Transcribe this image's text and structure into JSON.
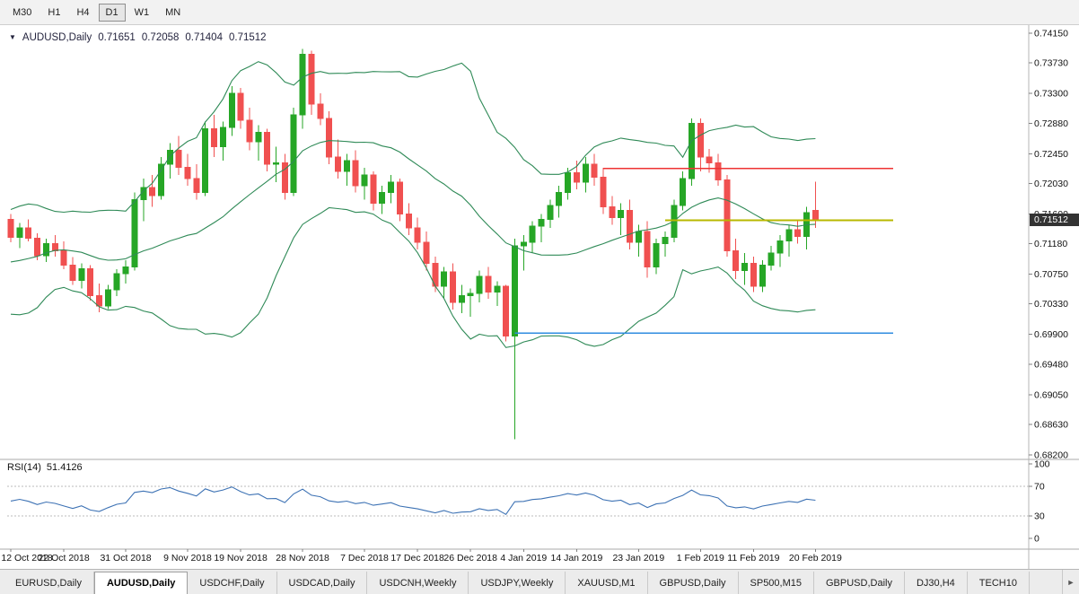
{
  "icons": {
    "chart_marker": "▼",
    "tab_scroll_right": "►"
  },
  "toolbar": {
    "timeframes": [
      {
        "label": "M30",
        "selected": false
      },
      {
        "label": "H1",
        "selected": false
      },
      {
        "label": "H4",
        "selected": false
      },
      {
        "label": "D1",
        "selected": true
      },
      {
        "label": "W1",
        "selected": false
      },
      {
        "label": "MN",
        "selected": false
      }
    ]
  },
  "chart": {
    "title_symbol": "AUDUSD,Daily",
    "ohlc": {
      "open": "0.71651",
      "high": "0.72058",
      "low": "0.71404",
      "close": "0.71512"
    },
    "current_price": "0.71512"
  },
  "rsi_label": {
    "name": "RSI(14)",
    "value": "51.4126"
  },
  "tabs": {
    "items": [
      {
        "label": "EURUSD,Daily",
        "selected": false
      },
      {
        "label": "AUDUSD,Daily",
        "selected": true
      },
      {
        "label": "USDCHF,Daily",
        "selected": false
      },
      {
        "label": "USDCAD,Daily",
        "selected": false
      },
      {
        "label": "USDCNH,Weekly",
        "selected": false
      },
      {
        "label": "USDJPY,Weekly",
        "selected": false
      },
      {
        "label": "XAUUSD,M1",
        "selected": false
      },
      {
        "label": "GBPUSD,Daily",
        "selected": false
      },
      {
        "label": "SP500,M15",
        "selected": false
      },
      {
        "label": "GBPUSD,Daily",
        "selected": false
      },
      {
        "label": "DJ30,H4",
        "selected": false
      },
      {
        "label": "TECH10",
        "selected": false
      }
    ]
  },
  "chart_data": {
    "type": "candlestick",
    "symbol": "AUDUSD",
    "timeframe": "Daily",
    "title": "AUDUSD,Daily",
    "current_price": 0.71512,
    "colors": {
      "up": "#26a626",
      "down": "#f05050"
    },
    "price_axis": {
      "ticks": [
        "0.74150",
        "0.73730",
        "0.73300",
        "0.72880",
        "0.72450",
        "0.72030",
        "0.71600",
        "0.71180",
        "0.70750",
        "0.70330",
        "0.69900",
        "0.69480",
        "0.69050",
        "0.68630",
        "0.68200"
      ]
    },
    "date_axis": [
      {
        "label": "12 Oct 2018",
        "i": 0
      },
      {
        "label": "22 Oct 2018",
        "i": 6
      },
      {
        "label": "31 Oct 2018",
        "i": 13
      },
      {
        "label": "9 Nov 2018",
        "i": 20
      },
      {
        "label": "19 Nov 2018",
        "i": 26
      },
      {
        "label": "28 Nov 2018",
        "i": 33
      },
      {
        "label": "7 Dec 2018",
        "i": 40
      },
      {
        "label": "17 Dec 2018",
        "i": 46
      },
      {
        "label": "26 Dec 2018",
        "i": 52
      },
      {
        "label": "4 Jan 2019",
        "i": 58
      },
      {
        "label": "14 Jan 2019",
        "i": 64
      },
      {
        "label": "23 Jan 2019",
        "i": 71
      },
      {
        "label": "1 Feb 2019",
        "i": 78
      },
      {
        "label": "11 Feb 2019",
        "i": 84
      },
      {
        "label": "20 Feb 2019",
        "i": 91
      }
    ],
    "candles": [
      [
        0.7152,
        0.716,
        0.712,
        0.7127
      ],
      [
        0.7127,
        0.7147,
        0.7112,
        0.714
      ],
      [
        0.714,
        0.7152,
        0.7121,
        0.7126
      ],
      [
        0.7126,
        0.7133,
        0.7095,
        0.7101
      ],
      [
        0.7101,
        0.7125,
        0.7092,
        0.7118
      ],
      [
        0.7118,
        0.713,
        0.71,
        0.7108
      ],
      [
        0.7108,
        0.7121,
        0.7082,
        0.7088
      ],
      [
        0.7088,
        0.7099,
        0.706,
        0.7066
      ],
      [
        0.7066,
        0.709,
        0.7055,
        0.7083
      ],
      [
        0.7083,
        0.7088,
        0.7038,
        0.7045
      ],
      [
        0.7045,
        0.7062,
        0.7021,
        0.703
      ],
      [
        0.703,
        0.706,
        0.7026,
        0.7053
      ],
      [
        0.7053,
        0.7082,
        0.7044,
        0.7076
      ],
      [
        0.7076,
        0.7095,
        0.7062,
        0.7085
      ],
      [
        0.7085,
        0.719,
        0.708,
        0.718
      ],
      [
        0.718,
        0.721,
        0.715,
        0.7197
      ],
      [
        0.7197,
        0.7215,
        0.717,
        0.7186
      ],
      [
        0.7186,
        0.724,
        0.718,
        0.723
      ],
      [
        0.723,
        0.726,
        0.721,
        0.725
      ],
      [
        0.725,
        0.727,
        0.7215,
        0.7226
      ],
      [
        0.7226,
        0.7245,
        0.72,
        0.721
      ],
      [
        0.721,
        0.723,
        0.718,
        0.719
      ],
      [
        0.719,
        0.729,
        0.7185,
        0.728
      ],
      [
        0.728,
        0.73,
        0.724,
        0.7255
      ],
      [
        0.7255,
        0.729,
        0.7235,
        0.7282
      ],
      [
        0.7282,
        0.734,
        0.727,
        0.733
      ],
      [
        0.733,
        0.7338,
        0.728,
        0.7292
      ],
      [
        0.7292,
        0.731,
        0.725,
        0.7262
      ],
      [
        0.7262,
        0.7285,
        0.7235,
        0.7275
      ],
      [
        0.7275,
        0.728,
        0.722,
        0.723
      ],
      [
        0.723,
        0.7255,
        0.7205,
        0.7232
      ],
      [
        0.7232,
        0.7245,
        0.718,
        0.719
      ],
      [
        0.719,
        0.731,
        0.7185,
        0.73
      ],
      [
        0.73,
        0.7393,
        0.728,
        0.7385
      ],
      [
        0.7385,
        0.739,
        0.73,
        0.7315
      ],
      [
        0.7315,
        0.733,
        0.7285,
        0.7295
      ],
      [
        0.7295,
        0.7305,
        0.723,
        0.724
      ],
      [
        0.724,
        0.7265,
        0.721,
        0.722
      ],
      [
        0.722,
        0.7245,
        0.72,
        0.7235
      ],
      [
        0.7235,
        0.725,
        0.719,
        0.72
      ],
      [
        0.72,
        0.7225,
        0.718,
        0.7215
      ],
      [
        0.7215,
        0.722,
        0.7165,
        0.7175
      ],
      [
        0.7175,
        0.72,
        0.716,
        0.719
      ],
      [
        0.719,
        0.7215,
        0.7175,
        0.7205
      ],
      [
        0.7205,
        0.721,
        0.715,
        0.716
      ],
      [
        0.716,
        0.7175,
        0.713,
        0.714
      ],
      [
        0.714,
        0.7155,
        0.711,
        0.712
      ],
      [
        0.712,
        0.7135,
        0.708,
        0.709
      ],
      [
        0.709,
        0.71,
        0.705,
        0.7058
      ],
      [
        0.7058,
        0.7085,
        0.704,
        0.7078
      ],
      [
        0.7078,
        0.709,
        0.7025,
        0.7035
      ],
      [
        0.7035,
        0.706,
        0.702,
        0.7045
      ],
      [
        0.7045,
        0.7055,
        0.7015,
        0.7048
      ],
      [
        0.7048,
        0.708,
        0.7035,
        0.7072
      ],
      [
        0.7072,
        0.7085,
        0.704,
        0.705
      ],
      [
        0.705,
        0.7065,
        0.703,
        0.7058
      ],
      [
        0.7058,
        0.706,
        0.698,
        0.6988
      ],
      [
        0.6988,
        0.7125,
        0.6842,
        0.7115
      ],
      [
        0.7115,
        0.713,
        0.708,
        0.712
      ],
      [
        0.712,
        0.715,
        0.7105,
        0.7143
      ],
      [
        0.7143,
        0.716,
        0.712,
        0.7152
      ],
      [
        0.7152,
        0.718,
        0.714,
        0.7172
      ],
      [
        0.7172,
        0.72,
        0.7155,
        0.719
      ],
      [
        0.719,
        0.7225,
        0.718,
        0.7218
      ],
      [
        0.7218,
        0.7235,
        0.7195,
        0.7205
      ],
      [
        0.7205,
        0.724,
        0.719,
        0.723
      ],
      [
        0.723,
        0.7245,
        0.72,
        0.7212
      ],
      [
        0.7212,
        0.7225,
        0.716,
        0.717
      ],
      [
        0.717,
        0.7185,
        0.7145,
        0.7155
      ],
      [
        0.7155,
        0.7175,
        0.713,
        0.7165
      ],
      [
        0.7165,
        0.718,
        0.711,
        0.712
      ],
      [
        0.712,
        0.7145,
        0.71,
        0.7135
      ],
      [
        0.7135,
        0.715,
        0.707,
        0.7085
      ],
      [
        0.7085,
        0.7125,
        0.7075,
        0.7118
      ],
      [
        0.7118,
        0.7135,
        0.71,
        0.7127
      ],
      [
        0.7127,
        0.718,
        0.712,
        0.7172
      ],
      [
        0.7172,
        0.722,
        0.7165,
        0.721
      ],
      [
        0.721,
        0.7295,
        0.72,
        0.7288
      ],
      [
        0.7288,
        0.7295,
        0.722,
        0.724
      ],
      [
        0.724,
        0.7252,
        0.7218,
        0.7232
      ],
      [
        0.7232,
        0.7245,
        0.72,
        0.7208
      ],
      [
        0.7208,
        0.7215,
        0.71,
        0.7108
      ],
      [
        0.7108,
        0.7125,
        0.7068,
        0.708
      ],
      [
        0.708,
        0.7105,
        0.706,
        0.709
      ],
      [
        0.709,
        0.71,
        0.705,
        0.7058
      ],
      [
        0.7058,
        0.7095,
        0.705,
        0.7088
      ],
      [
        0.7088,
        0.7115,
        0.708,
        0.7105
      ],
      [
        0.7105,
        0.713,
        0.7085,
        0.7122
      ],
      [
        0.7122,
        0.7145,
        0.71,
        0.7138
      ],
      [
        0.7138,
        0.715,
        0.7118,
        0.7128
      ],
      [
        0.7128,
        0.717,
        0.711,
        0.7162
      ],
      [
        0.71651,
        0.72058,
        0.71404,
        0.71512
      ]
    ],
    "warmup_closes": [
      0.713,
      0.71,
      0.707,
      0.704,
      0.702,
      0.704,
      0.707,
      0.71,
      0.712,
      0.7135,
      0.712,
      0.7095,
      0.707,
      0.705,
      0.7065,
      0.709,
      0.711,
      0.713,
      0.7145,
      0.715
    ],
    "bollinger": {
      "period": 20,
      "deviation": 2.0,
      "color": "#2f8a57"
    },
    "rsi": {
      "period": 14,
      "value": 51.4126,
      "color": "#3d72b4",
      "levels": [
        70,
        30
      ],
      "axis_ticks": [
        "100",
        "70",
        "30",
        "0"
      ]
    },
    "lines": [
      {
        "name": "resistance-line-red",
        "color": "#ee3333",
        "price": 0.7224,
        "from_i": 67,
        "to_i": 99.8,
        "width": 1.6
      },
      {
        "name": "price-level-line-yellow",
        "color": "#b8b800",
        "price": 0.7151,
        "from_i": 74,
        "to_i": 99.8,
        "width": 1.6
      },
      {
        "name": "support-line-blue",
        "color": "#2f8ce0",
        "price": 0.6992,
        "from_i": 57,
        "to_i": 99.8,
        "width": 1.6
      }
    ]
  }
}
